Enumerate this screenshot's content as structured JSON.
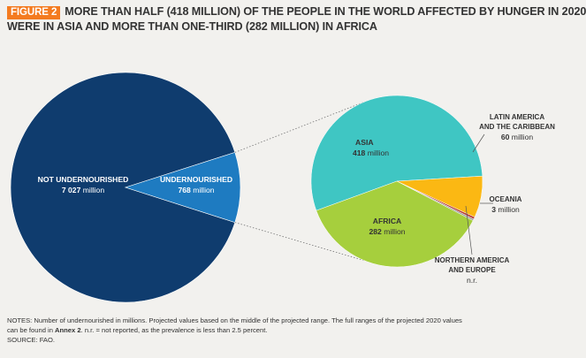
{
  "header": {
    "figure_label": "FIGURE 2",
    "title_line1": "MORE THAN HALF (418 MILLION) OF THE PEOPLE IN THE WORLD AFFECTED BY HUNGER IN 2020",
    "title_line2": "WERE IN ASIA AND MORE THAN ONE-THIRD (282 MILLION) IN AFRICA"
  },
  "chart_data": [
    {
      "type": "pie",
      "slices": [
        {
          "label": "NOT UNDERNOURISHED",
          "value": 7027,
          "unit": "million",
          "color": "#0f3c6e"
        },
        {
          "label": "UNDERNOURISHED",
          "value": 768,
          "unit": "million",
          "color": "#1e7bc1"
        }
      ]
    },
    {
      "type": "pie",
      "slices": [
        {
          "label": "ASIA",
          "value": 418,
          "display": "418",
          "unit": "million",
          "color": "#3fc6c3"
        },
        {
          "label": "LATIN AMERICA AND THE CARIBBEAN",
          "value": 60,
          "display": "60",
          "unit": "million",
          "color": "#fbb813"
        },
        {
          "label": "OCEANIA",
          "value": 3,
          "display": "3",
          "unit": "million",
          "color": "#b8372f"
        },
        {
          "label": "NORTHERN AMERICA AND EUROPE",
          "value": 2.5,
          "display": "n.r.",
          "unit": "",
          "color": "#9c9b9b"
        },
        {
          "label": "AFRICA",
          "value": 282,
          "display": "282",
          "unit": "million",
          "color": "#a6cf3d"
        }
      ]
    }
  ],
  "notes": {
    "line1": "NOTES: Number of undernourished in millions. Projected values based on the middle of the projected range. The full ranges of the projected 2020 values",
    "line2_pre": "can be found in ",
    "line2_bold": "Annex 2",
    "line2_post": ". n.r. = not reported, as the prevalence is less than 2.5 percent.",
    "line3": "SOURCE: FAO."
  }
}
